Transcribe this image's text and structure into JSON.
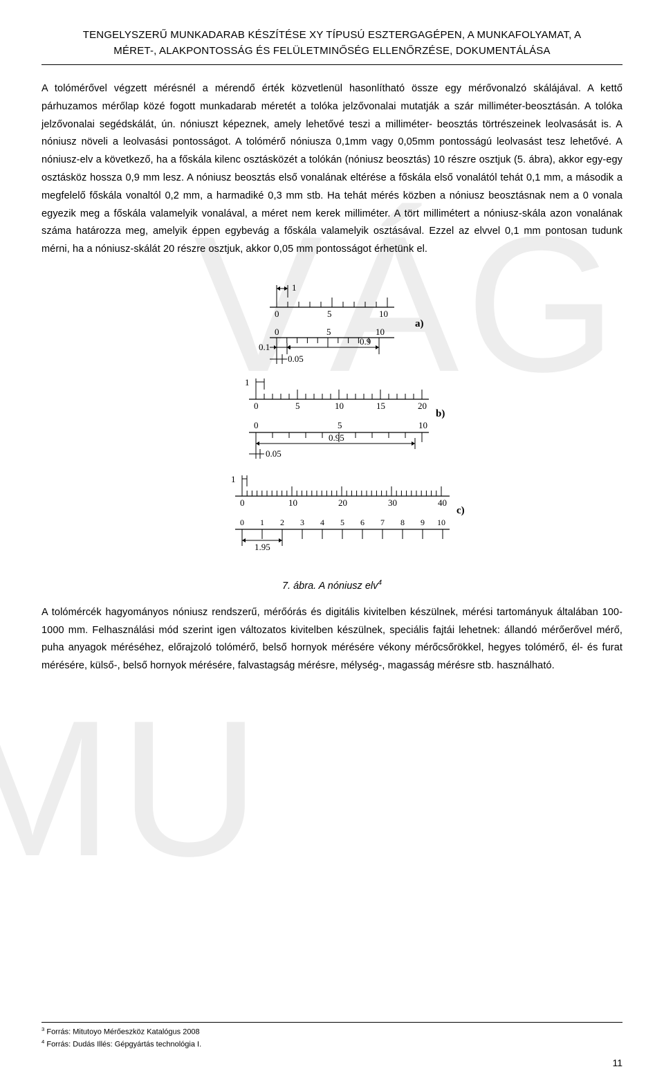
{
  "header": {
    "line1": "TENGELYSZERŰ MUNKADARAB KÉSZÍTÉSE XY TÍPUSÚ ESZTERGAGÉPEN, A MUNKAFOLYAMAT, A",
    "line2": "MÉRET-, ALAKPONTOSSÁG ÉS FELÜLETMINŐSÉG ELLENŐRZÉSE, DOKUMENTÁLÁSA"
  },
  "paragraph1": "A tolómérővel végzett mérésnél a mérendő érték közvetlenül hasonlítható össze egy mérővonalzó skálájával. A kettő párhuzamos mérőlap közé fogott munkadarab méretét a tolóka jelzővonalai mutatják a szár milliméter-beosztásán. A tolóka jelzővonalai segédskálát, ún. nóniuszt képeznek, amely lehetővé teszi a milliméter- beosztás törtrészeinek leolvasását is. A nóniusz növeli a leolvasási pontosságot. A tolómérő nóniusza 0,1mm vagy 0,05mm pontosságú leolvasást tesz lehetővé. A nóniusz-elv a következő, ha a főskála kilenc osztásközét a tolókán (nóniusz beosztás) 10 részre osztjuk (5. ábra), akkor egy-egy osztásköz hossza 0,9 mm lesz. A nóniusz beosztás első vonalának eltérése a főskála első vonalától tehát 0,1 mm, a második a megfelelő főskála vonaltól 0,2 mm, a harmadiké 0,3 mm stb. Ha tehát mérés közben a nóniusz beosztásnak nem a 0 vonala egyezik meg a főskála valamelyik vonalával, a méret nem kerek milliméter. A tört millimétert a nóniusz-skála azon vonalának száma határozza meg, amelyik éppen egybevág a főskála valamelyik osztásával. Ezzel az elvvel 0,1 mm pontosan tudunk mérni, ha a nóniusz-skálát 20 részre osztjuk, akkor 0,05 mm pontosságot érhetünk el.",
  "figure": {
    "caption_prefix": "7. ábra. A nóniusz elv",
    "caption_sup": "4",
    "labels": {
      "a": "a)",
      "b": "b)",
      "c": "c)"
    },
    "diagram_a": {
      "top_scale_labels": [
        "0",
        "5",
        "10"
      ],
      "top_left_dim": "1",
      "bottom_scale_labels": [
        "0",
        "5",
        "10"
      ],
      "dim_left": "0.1",
      "dim_right": "0.9",
      "step": "0.05"
    },
    "diagram_b": {
      "top_scale_labels": [
        "0",
        "5",
        "10",
        "15",
        "20"
      ],
      "top_left_dim": "1",
      "bottom_scale_labels": [
        "0",
        "5",
        "10"
      ],
      "dim_right": "0.95",
      "step": "0.05"
    },
    "diagram_c": {
      "top_scale_labels": [
        "0",
        "10",
        "20",
        "30",
        "40"
      ],
      "top_left_dim": "1",
      "bottom_scale_labels": [
        "0",
        "1",
        "2",
        "3",
        "4",
        "5",
        "6",
        "7",
        "8",
        "9",
        "10"
      ],
      "dim": "1.95"
    },
    "colors": {
      "line": "#000000",
      "bg": "#ffffff"
    },
    "line_width": 1
  },
  "paragraph2": "A tolómércék hagyományos nóniusz rendszerű, mérőórás és digitális kivitelben készülnek, mérési tartományuk általában 100-1000 mm. Felhasználási mód szerint igen változatos kivitelben készülnek, speciális fajtái lehetnek: állandó mérőerővel mérő, puha anyagok méréséhez, előrajzoló tolómérő, belső hornyok mérésére vékony mérőcsőrökkel, hegyes tolómérő, él- és furat mérésére, külső-, belső hornyok mérésére, falvastagság mérésre, mélység-, magasság mérésre stb. használható.",
  "footnotes": {
    "f3": "Forrás: Mitutoyo Mérőeszköz Katalógus 2008",
    "f4": "Forrás: Dudás Illés: Gépgyártás technológia I.",
    "n3": "3",
    "n4": "4"
  },
  "page_number": "11"
}
